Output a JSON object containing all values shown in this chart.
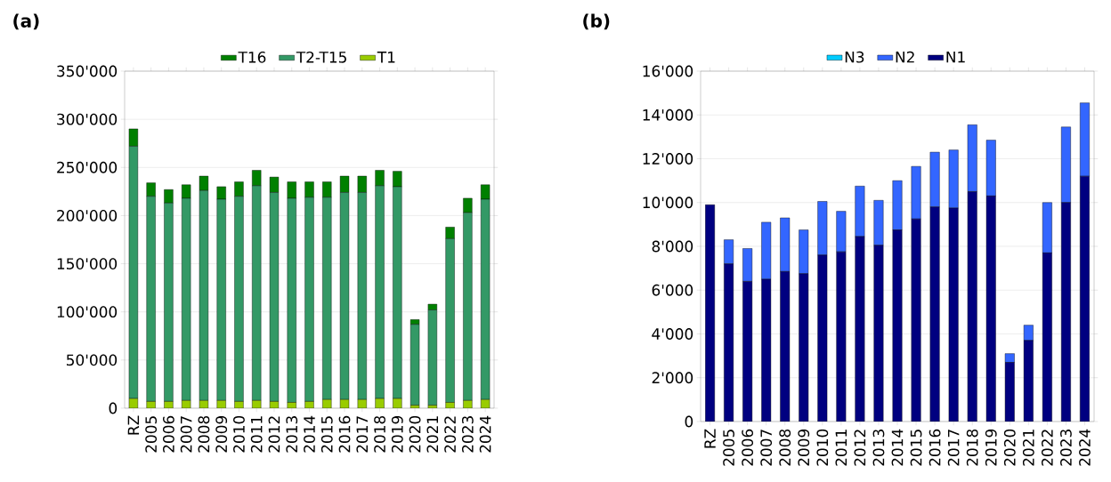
{
  "chart_data": [
    {
      "type": "bar",
      "title": "(a)",
      "stacked": true,
      "grid": "y",
      "legend": "top",
      "categories": [
        "RZ",
        "2005",
        "2006",
        "2007",
        "2008",
        "2009",
        "2010",
        "2011",
        "2012",
        "2013",
        "2014",
        "2015",
        "2016",
        "2017",
        "2018",
        "2019",
        "2020",
        "2021",
        "2022",
        "2023",
        "2024"
      ],
      "ylim": [
        0,
        350000
      ],
      "yticks": [
        {
          "value": 0,
          "label": "0"
        },
        {
          "value": 50000,
          "label": "50'000"
        },
        {
          "value": 100000,
          "label": "100'000"
        },
        {
          "value": 150000,
          "label": "150'000"
        },
        {
          "value": 200000,
          "label": "200'000"
        },
        {
          "value": 250000,
          "label": "250'000"
        },
        {
          "value": 300000,
          "label": "300'000"
        },
        {
          "value": 350000,
          "label": "350'000"
        }
      ],
      "series": [
        {
          "name": "T1",
          "color": "#99cc00",
          "values": [
            10000,
            7000,
            7000,
            8000,
            8000,
            8000,
            7000,
            8000,
            7000,
            6000,
            7000,
            9000,
            9000,
            9000,
            10000,
            10000,
            3000,
            3000,
            6000,
            8000,
            9000
          ]
        },
        {
          "name": "T2-T15",
          "color": "#339966",
          "values": [
            262000,
            213000,
            206000,
            210000,
            218000,
            209000,
            213000,
            223000,
            217000,
            212000,
            212000,
            210000,
            215000,
            215000,
            221000,
            220000,
            84000,
            99000,
            170000,
            195000,
            208000
          ]
        },
        {
          "name": "T16",
          "color": "#008000",
          "values": [
            18000,
            14000,
            14000,
            14000,
            15000,
            13000,
            15000,
            16000,
            16000,
            17000,
            16000,
            16000,
            17000,
            17000,
            16000,
            16000,
            5000,
            6000,
            12000,
            15000,
            15000
          ]
        }
      ]
    },
    {
      "type": "bar",
      "title": "(b)",
      "stacked": true,
      "grid": "y",
      "legend": "top",
      "categories": [
        "RZ",
        "2005",
        "2006",
        "2007",
        "2008",
        "2009",
        "2010",
        "2011",
        "2012",
        "2013",
        "2014",
        "2015",
        "2016",
        "2017",
        "2018",
        "2019",
        "2020",
        "2021",
        "2022",
        "2023",
        "2024"
      ],
      "ylim": [
        0,
        16000
      ],
      "yticks": [
        {
          "value": 0,
          "label": "0"
        },
        {
          "value": 2000,
          "label": "2'000"
        },
        {
          "value": 4000,
          "label": "4'000"
        },
        {
          "value": 6000,
          "label": "6'000"
        },
        {
          "value": 8000,
          "label": "8'000"
        },
        {
          "value": 10000,
          "label": "10'000"
        },
        {
          "value": 12000,
          "label": "12'000"
        },
        {
          "value": 14000,
          "label": "14'000"
        },
        {
          "value": 16000,
          "label": "16'000"
        }
      ],
      "series": [
        {
          "name": "N1",
          "color": "#000080",
          "values": [
            9900,
            7200,
            6400,
            6500,
            6850,
            6750,
            7600,
            7750,
            8450,
            8050,
            8750,
            9250,
            9800,
            9750,
            10500,
            10300,
            2700,
            3700,
            7700,
            10000,
            11200
          ]
        },
        {
          "name": "N2",
          "color": "#3366ff",
          "values": [
            0,
            1100,
            1500,
            2600,
            2450,
            2000,
            2450,
            1850,
            2300,
            2050,
            2250,
            2400,
            2500,
            2650,
            3050,
            2550,
            400,
            700,
            2300,
            3450,
            3350
          ]
        },
        {
          "name": "N3",
          "color": "#00ccff",
          "values": [
            0,
            0,
            0,
            0,
            0,
            0,
            0,
            0,
            0,
            0,
            0,
            0,
            0,
            0,
            0,
            0,
            0,
            0,
            0,
            0,
            0
          ]
        }
      ]
    }
  ]
}
